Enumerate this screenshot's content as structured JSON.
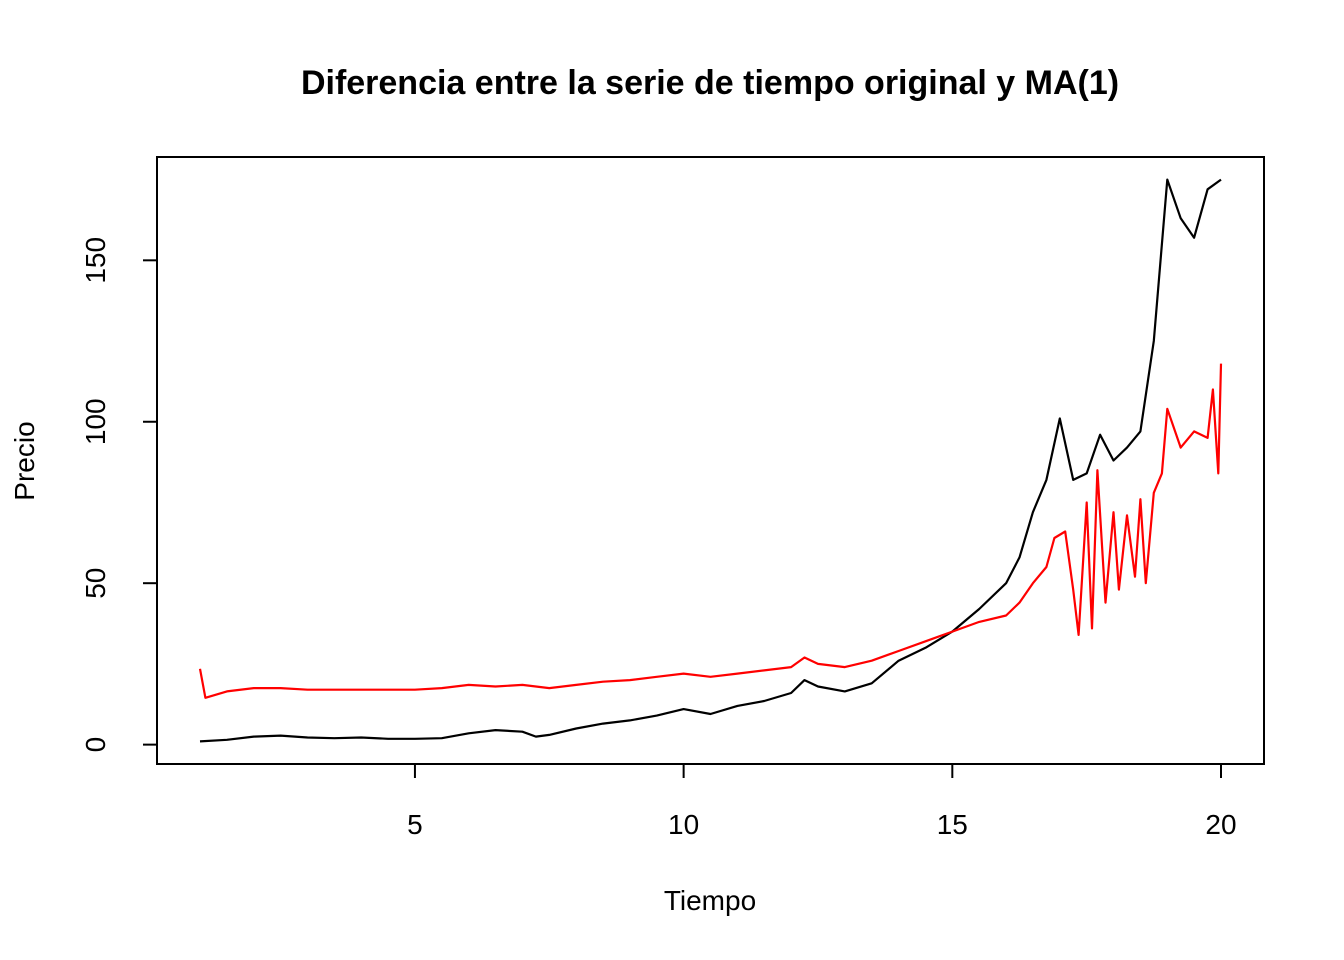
{
  "chart_data": {
    "type": "line",
    "title": "Diferencia entre la serie de tiempo original y MA(1)",
    "xlabel": "Tiempo",
    "ylabel": "Precio",
    "xlim": [
      0.2,
      20.8
    ],
    "ylim": [
      -6,
      182
    ],
    "x_ticks": [
      5,
      10,
      15,
      20
    ],
    "y_ticks": [
      0,
      50,
      100,
      150
    ],
    "grid": false,
    "legend": "none",
    "series": [
      {
        "color": "#000000",
        "x": [
          1.0,
          1.5,
          2.0,
          2.5,
          3.0,
          3.5,
          4.0,
          4.5,
          5.0,
          5.5,
          6.0,
          6.5,
          7.0,
          7.25,
          7.5,
          8.0,
          8.5,
          9.0,
          9.5,
          10.0,
          10.5,
          11.0,
          11.5,
          12.0,
          12.25,
          12.5,
          13.0,
          13.5,
          14.0,
          14.5,
          15.0,
          15.5,
          16.0,
          16.25,
          16.5,
          16.75,
          17.0,
          17.25,
          17.5,
          17.75,
          18.0,
          18.25,
          18.5,
          18.75,
          19.0,
          19.25,
          19.5,
          19.75,
          20.0
        ],
        "y": [
          1,
          1.5,
          2.5,
          2.8,
          2.2,
          2.0,
          2.2,
          1.8,
          1.8,
          2.0,
          3.5,
          4.5,
          4.0,
          2.5,
          3.0,
          5.0,
          6.5,
          7.5,
          9.0,
          11.0,
          9.5,
          12.0,
          13.5,
          16.0,
          20.0,
          18.0,
          16.5,
          19.0,
          26.0,
          30.0,
          35.0,
          42.0,
          50.0,
          58.0,
          72.0,
          82.0,
          101.0,
          82.0,
          84.0,
          96.0,
          88.0,
          92.0,
          97.0,
          125.0,
          175.0,
          163.0,
          157.0,
          172.0,
          175.0
        ]
      },
      {
        "color": "#ff0000",
        "x": [
          1.0,
          1.1,
          1.5,
          2.0,
          2.5,
          3.0,
          3.5,
          4.0,
          4.5,
          5.0,
          5.5,
          6.0,
          6.5,
          7.0,
          7.5,
          8.0,
          8.5,
          9.0,
          9.5,
          10.0,
          10.5,
          11.0,
          11.5,
          12.0,
          12.25,
          12.5,
          13.0,
          13.5,
          14.0,
          14.5,
          15.0,
          15.5,
          16.0,
          16.25,
          16.5,
          16.75,
          16.9,
          17.1,
          17.25,
          17.35,
          17.5,
          17.6,
          17.7,
          17.85,
          18.0,
          18.1,
          18.25,
          18.4,
          18.5,
          18.6,
          18.75,
          18.9,
          19.0,
          19.25,
          19.5,
          19.75,
          19.85,
          19.95,
          20.0
        ],
        "y": [
          23.5,
          14.5,
          16.5,
          17.5,
          17.5,
          17.0,
          17.0,
          17.0,
          17.0,
          17.0,
          17.5,
          18.5,
          18.0,
          18.5,
          17.5,
          18.5,
          19.5,
          20.0,
          21.0,
          22.0,
          21.0,
          22.0,
          23.0,
          24.0,
          27.0,
          25.0,
          24.0,
          26.0,
          29.0,
          32.0,
          35.0,
          38.0,
          40.0,
          44.0,
          50.0,
          55.0,
          64.0,
          66.0,
          48.0,
          34.0,
          75.0,
          36.0,
          85.0,
          44.0,
          72.0,
          48.0,
          71.0,
          52.0,
          76.0,
          50.0,
          78.0,
          84.0,
          104.0,
          92.0,
          97.0,
          95.0,
          110.0,
          84.0,
          118.0
        ]
      }
    ]
  }
}
